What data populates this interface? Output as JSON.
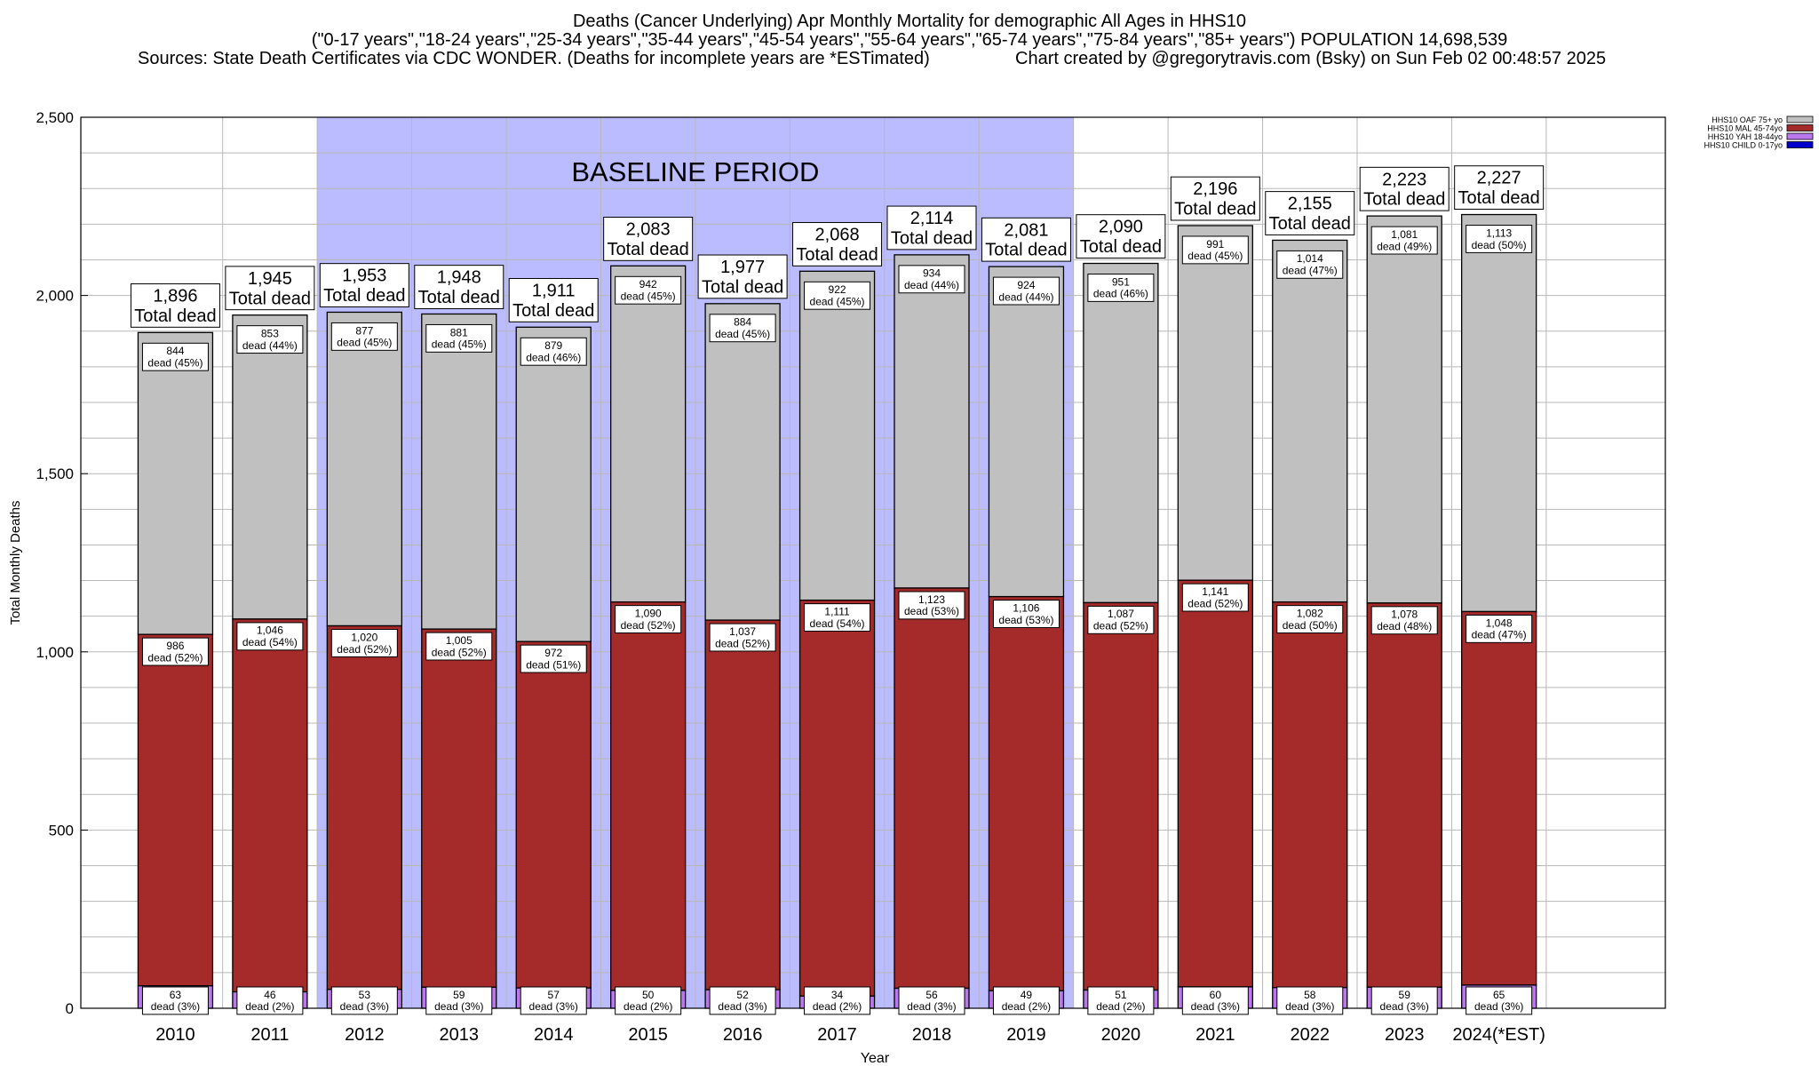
{
  "chart_data": {
    "type": "bar",
    "stacked": true,
    "title": "Deaths (Cancer Underlying) Apr Monthly Mortality for demographic All Ages in HHS10",
    "subtitle": "(\"0-17 years\",\"18-24 years\",\"25-34 years\",\"35-44 years\",\"45-54 years\",\"55-64 years\",\"65-74 years\",\"75-84 years\",\"85+ years\") POPULATION 14,698,539",
    "sources": "Sources: State Death Certificates via CDC WONDER. (Deaths for incomplete years are *ESTimated)",
    "credit": "Chart created by @gregorytravis.com (Bsky) on Sun Feb 02 00:48:57 2025",
    "xlabel": "Year",
    "ylabel": "Total Monthly Deaths",
    "ylim": [
      0,
      2500
    ],
    "yticks": [
      0,
      500,
      1000,
      1500,
      2000,
      2500
    ],
    "ytick_labels": [
      "0",
      "500",
      "1,000",
      "1,500",
      "2,000",
      "2,500"
    ],
    "grid": true,
    "legend_position": "top-right",
    "baseline_label": "BASELINE PERIOD",
    "baseline_range": [
      "2012",
      "2019"
    ],
    "categories": [
      "2010",
      "2011",
      "2012",
      "2013",
      "2014",
      "2015",
      "2016",
      "2017",
      "2018",
      "2019",
      "2020",
      "2021",
      "2022",
      "2023",
      "2024(*EST)"
    ],
    "totals": [
      1896,
      1945,
      1953,
      1948,
      1911,
      2083,
      1977,
      2068,
      2114,
      2081,
      2090,
      2196,
      2155,
      2223,
      2227
    ],
    "total_labels": [
      "1,896",
      "1,945",
      "1,953",
      "1,948",
      "1,911",
      "2,083",
      "1,977",
      "2,068",
      "2,114",
      "2,081",
      "2,090",
      "2,196",
      "2,155",
      "2,223",
      "2,227"
    ],
    "total_caption": "Total dead",
    "series": [
      {
        "name": "HHS10 CHILD 0-17yo",
        "color": "#0000cc",
        "values": [
          0,
          0,
          0,
          0,
          0,
          0,
          0,
          0,
          0,
          0,
          0,
          0,
          0,
          0,
          0
        ]
      },
      {
        "name": "HHS10 YAH 18-44yo",
        "color": "#bb77ee",
        "values": [
          63,
          46,
          53,
          59,
          57,
          50,
          52,
          34,
          56,
          49,
          51,
          60,
          58,
          59,
          65
        ],
        "labels": [
          "63",
          "46",
          "53",
          "59",
          "57",
          "50",
          "52",
          "34",
          "56",
          "49",
          "51",
          "60",
          "58",
          "59",
          "65"
        ],
        "pct_labels": [
          "dead (3%)",
          "dead (2%)",
          "dead (3%)",
          "dead (3%)",
          "dead (3%)",
          "dead (2%)",
          "dead (3%)",
          "dead (2%)",
          "dead (3%)",
          "dead (2%)",
          "dead (2%)",
          "dead (3%)",
          "dead (3%)",
          "dead (3%)",
          "dead (3%)"
        ]
      },
      {
        "name": "HHS10 MAL 45-74yo",
        "color": "#a52a2a",
        "values": [
          986,
          1046,
          1020,
          1005,
          972,
          1090,
          1037,
          1111,
          1123,
          1106,
          1087,
          1141,
          1082,
          1078,
          1048
        ],
        "labels": [
          "986",
          "1,046",
          "1,020",
          "1,005",
          "972",
          "1,090",
          "1,037",
          "1,111",
          "1,123",
          "1,106",
          "1,087",
          "1,141",
          "1,082",
          "1,078",
          "1,048"
        ],
        "pct_labels": [
          "dead (52%)",
          "dead (54%)",
          "dead (52%)",
          "dead (52%)",
          "dead (51%)",
          "dead (52%)",
          "dead (52%)",
          "dead (54%)",
          "dead (53%)",
          "dead (53%)",
          "dead (52%)",
          "dead (52%)",
          "dead (50%)",
          "dead (48%)",
          "dead (47%)"
        ]
      },
      {
        "name": "HHS10 OAF 75+ yo",
        "color": "#c0c0c0",
        "values": [
          844,
          853,
          877,
          881,
          879,
          942,
          884,
          922,
          934,
          924,
          951,
          991,
          1014,
          1081,
          1113
        ],
        "labels": [
          "844",
          "853",
          "877",
          "881",
          "879",
          "942",
          "884",
          "922",
          "934",
          "924",
          "951",
          "991",
          "1,014",
          "1,081",
          "1,113"
        ],
        "pct_labels": [
          "dead (45%)",
          "dead (44%)",
          "dead (45%)",
          "dead (45%)",
          "dead (46%)",
          "dead (45%)",
          "dead (45%)",
          "dead (45%)",
          "dead (44%)",
          "dead (44%)",
          "dead (46%)",
          "dead (45%)",
          "dead (47%)",
          "dead (49%)",
          "dead (50%)"
        ]
      }
    ]
  }
}
